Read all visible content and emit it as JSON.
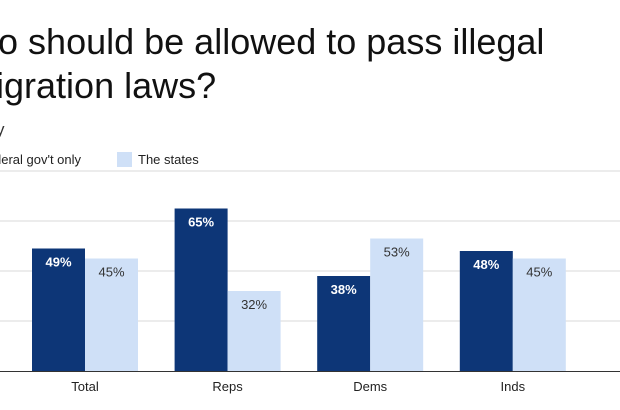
{
  "chart_data": {
    "type": "bar",
    "title": "Who should be allowed to pass illegal immigration laws?",
    "title_lines": [
      "ho should be allowed to pass illegal",
      "nigration laws?"
    ],
    "subtitle_fragment": "y",
    "categories": [
      "Total",
      "Reps",
      "Dems",
      "Inds"
    ],
    "series": [
      {
        "name": "Federal gov't only",
        "legend_label": "deral gov't only",
        "color": "#0d3677",
        "values": [
          49,
          65,
          38,
          48
        ],
        "label_color": "#ffffff"
      },
      {
        "name": "The states",
        "legend_label": "The states",
        "color": "#cfe0f7",
        "values": [
          45,
          32,
          53,
          45
        ],
        "label_color": "#333333"
      }
    ],
    "value_suffix": "%",
    "ylim": [
      0,
      80
    ],
    "gridlines": [
      20,
      40,
      60,
      80
    ],
    "xlabel": "",
    "ylabel": "",
    "grid": true
  }
}
